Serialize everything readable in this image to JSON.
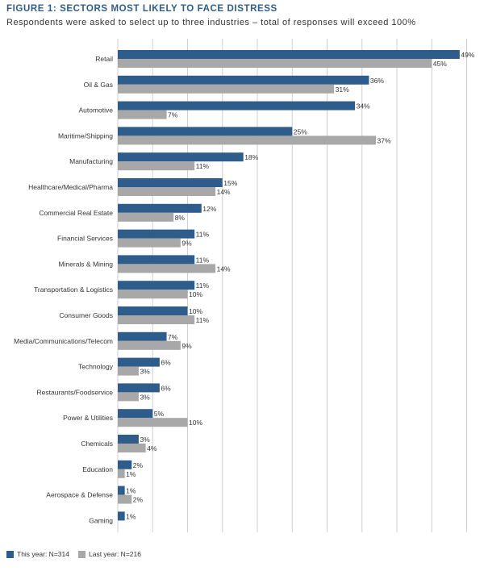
{
  "figure_label": "FIGURE 1:",
  "title": "SECTORS MOST LIKELY TO FACE DISTRESS",
  "subtitle": "Respondents were asked to select up to three industries – total of responses will exceed 100%",
  "colors": {
    "this_year": "#2e5d8c",
    "last_year": "#a8a8a8",
    "grid": "#cfcfcf"
  },
  "legend": {
    "this_year": "This year: N=314",
    "last_year": "Last year: N=216"
  },
  "chart_data": {
    "type": "bar",
    "orientation": "horizontal",
    "title": "SECTORS MOST LIKELY TO FACE DISTRESS",
    "subtitle": "Respondents were asked to select up to three industries – total of responses will exceed 100%",
    "xlim": [
      0,
      50
    ],
    "grid": true,
    "legend_position": "bottom-left",
    "categories": [
      "Retail",
      "Oil & Gas",
      "Automotive",
      "Maritime/Shipping",
      "Manufacturing",
      "Healthcare/Medical/Pharma",
      "Commercial Real Estate",
      "Financial Services",
      "Minerals & Mining",
      "Transportation & Logistics",
      "Consumer Goods",
      "Media/Communications/Telecom",
      "Technology",
      "Restaurants/Foodservice",
      "Power & Utilities",
      "Chemicals",
      "Education",
      "Aerospace & Defense",
      "Gaming"
    ],
    "series": [
      {
        "name": "This year: N=314",
        "values": [
          49,
          36,
          34,
          25,
          18,
          15,
          12,
          11,
          11,
          11,
          10,
          7,
          6,
          6,
          5,
          3,
          2,
          1,
          1
        ]
      },
      {
        "name": "Last year: N=216",
        "values": [
          45,
          31,
          7,
          37,
          11,
          14,
          8,
          9,
          14,
          10,
          11,
          9,
          3,
          3,
          10,
          4,
          1,
          2,
          null
        ]
      }
    ]
  }
}
